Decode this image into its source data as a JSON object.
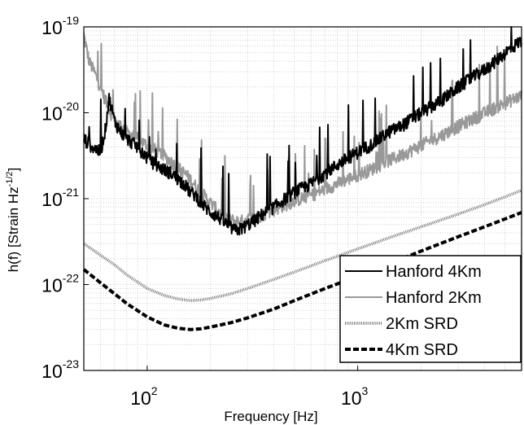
{
  "chart_data": {
    "type": "line",
    "xlabel": "Frequency [Hz]",
    "ylabel": "h(f) [Strain Hz",
    "ylabel_sup": "-1/2",
    "ylabel_end": "]",
    "x_scale": "log",
    "y_scale": "log",
    "xlim": [
      50,
      6000
    ],
    "ylim": [
      1e-23,
      1e-19
    ],
    "grid": true,
    "legend_position": "bottom-right",
    "x_ticks": [
      {
        "base": "10",
        "exp": "2"
      },
      {
        "base": "10",
        "exp": "3"
      }
    ],
    "y_ticks": [
      {
        "base": "10",
        "exp": "-19"
      },
      {
        "base": "10",
        "exp": "-20"
      },
      {
        "base": "10",
        "exp": "-21"
      },
      {
        "base": "10",
        "exp": "-22"
      },
      {
        "base": "10",
        "exp": "-23"
      }
    ],
    "series": [
      {
        "name": "Hanford 4Km",
        "color": "#000000",
        "style": "solid",
        "x": [
          50,
          55,
          60,
          63,
          66,
          70,
          75,
          80,
          85,
          90,
          95,
          100,
          110,
          120,
          130,
          140,
          150,
          160,
          170,
          180,
          200,
          220,
          240,
          260,
          280,
          300,
          320,
          350,
          380,
          400,
          450,
          500,
          600,
          700,
          800,
          900,
          1000,
          1200,
          1400,
          1600,
          1800,
          2000,
          2500,
          3000,
          3500,
          4000,
          4500,
          5000,
          6000
        ],
        "y": [
          5e-21,
          4e-21,
          3.5e-21,
          6e-21,
          1.5e-20,
          8e-21,
          6e-21,
          5e-21,
          4.5e-21,
          4e-21,
          3.5e-21,
          3e-21,
          2.5e-21,
          2.2e-21,
          2e-21,
          1.7e-21,
          1.5e-21,
          1.2e-21,
          1.1e-21,
          9e-22,
          7e-22,
          6e-22,
          5e-22,
          4.3e-22,
          4.5e-22,
          5e-22,
          5.5e-22,
          6.5e-22,
          7.5e-22,
          8e-22,
          1e-21,
          1.2e-21,
          1.5e-21,
          2e-21,
          2.5e-21,
          3e-21,
          3.5e-21,
          4.5e-21,
          6e-21,
          7e-21,
          8.5e-21,
          1e-20,
          1.4e-20,
          2e-20,
          2.6e-20,
          3.2e-20,
          4e-20,
          5e-20,
          7e-20
        ]
      },
      {
        "name": "Hanford 2Km",
        "color": "#999999",
        "style": "solid",
        "x": [
          50,
          53,
          56,
          60,
          65,
          70,
          75,
          80,
          85,
          90,
          100,
          110,
          120,
          130,
          140,
          150,
          160,
          170,
          180,
          200,
          220,
          240,
          260,
          280,
          300,
          350,
          400,
          450,
          500,
          600,
          700,
          800,
          900,
          1000,
          1200,
          1400,
          1600,
          1800,
          2000,
          2500,
          3000,
          3500,
          4000,
          4500,
          5000,
          6000
        ],
        "y": [
          8e-20,
          4e-20,
          3e-20,
          2e-20,
          1.2e-20,
          8e-21,
          7e-21,
          6e-21,
          5.5e-21,
          5e-21,
          4.2e-21,
          3.7e-21,
          3.2e-21,
          2.7e-21,
          2.3e-21,
          2e-21,
          1.7e-21,
          1.4e-21,
          1.2e-21,
          9e-22,
          7e-22,
          6e-22,
          5.5e-22,
          5.5e-22,
          5.8e-22,
          6.5e-22,
          7.5e-22,
          8.5e-22,
          9.5e-22,
          1.1e-21,
          1.3e-21,
          1.5e-21,
          1.7e-21,
          1.9e-21,
          2.3e-21,
          2.8e-21,
          3.2e-21,
          3.7e-21,
          4.2e-21,
          5.5e-21,
          7e-21,
          8.5e-21,
          1e-20,
          1.15e-20,
          1.3e-20,
          1.6e-20
        ]
      },
      {
        "name": "2Km SRD",
        "color": "#777777",
        "style": "dotted",
        "x": [
          50,
          60,
          70,
          80,
          100,
          120,
          140,
          160,
          180,
          200,
          250,
          300,
          400,
          500,
          700,
          1000,
          1500,
          2000,
          3000,
          4000,
          5000,
          6000
        ],
        "y": [
          3e-22,
          2.2e-22,
          1.7e-22,
          1.3e-22,
          9e-23,
          7.5e-23,
          6.8e-23,
          6.5e-23,
          6.6e-23,
          6.9e-23,
          7.8e-23,
          9e-23,
          1.15e-22,
          1.4e-22,
          1.9e-22,
          2.6e-22,
          3.7e-22,
          4.7e-22,
          6.6e-22,
          8.5e-22,
          1.05e-21,
          1.25e-21
        ]
      },
      {
        "name": "4Km SRD",
        "color": "#000000",
        "style": "dashed",
        "x": [
          50,
          60,
          70,
          80,
          100,
          120,
          140,
          160,
          180,
          200,
          250,
          300,
          400,
          500,
          700,
          1000,
          1500,
          2000,
          3000,
          4000,
          5000,
          6000
        ],
        "y": [
          1.5e-22,
          1.05e-22,
          7.8e-23,
          6e-23,
          4.2e-23,
          3.4e-23,
          3.1e-23,
          3e-23,
          3.05e-23,
          3.2e-23,
          3.6e-23,
          4.1e-23,
          5.2e-23,
          6.5e-23,
          9e-23,
          1.25e-22,
          1.85e-22,
          2.45e-22,
          3.6e-22,
          4.7e-22,
          5.8e-22,
          6.9e-22
        ]
      }
    ]
  }
}
